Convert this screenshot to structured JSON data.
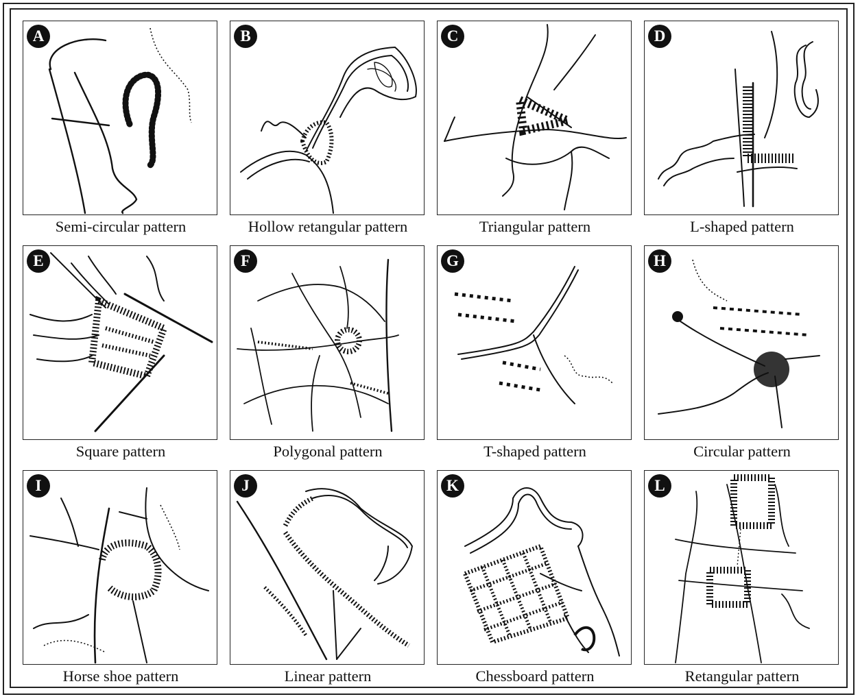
{
  "figure": {
    "panels": [
      {
        "letter": "A",
        "caption": "Semi-circular pattern",
        "icon": "semi-circular-settlement-icon"
      },
      {
        "letter": "B",
        "caption": "Hollow retangular pattern",
        "icon": "hollow-rectangular-settlement-icon"
      },
      {
        "letter": "C",
        "caption": "Triangular pattern",
        "icon": "triangular-settlement-icon"
      },
      {
        "letter": "D",
        "caption": "L-shaped pattern",
        "icon": "l-shaped-settlement-icon"
      },
      {
        "letter": "E",
        "caption": "Square pattern",
        "icon": "square-settlement-icon"
      },
      {
        "letter": "F",
        "caption": "Polygonal pattern",
        "icon": "polygonal-settlement-icon"
      },
      {
        "letter": "G",
        "caption": "T-shaped pattern",
        "icon": "t-shaped-settlement-icon"
      },
      {
        "letter": "H",
        "caption": "Circular pattern",
        "icon": "circular-settlement-icon"
      },
      {
        "letter": "I",
        "caption": "Horse shoe pattern",
        "icon": "horse-shoe-settlement-icon"
      },
      {
        "letter": "J",
        "caption": "Linear pattern",
        "icon": "linear-settlement-icon"
      },
      {
        "letter": "K",
        "caption": "Chessboard pattern",
        "icon": "chessboard-settlement-icon"
      },
      {
        "letter": "L",
        "caption": "Retangular pattern",
        "icon": "rectangular-settlement-icon"
      }
    ]
  }
}
